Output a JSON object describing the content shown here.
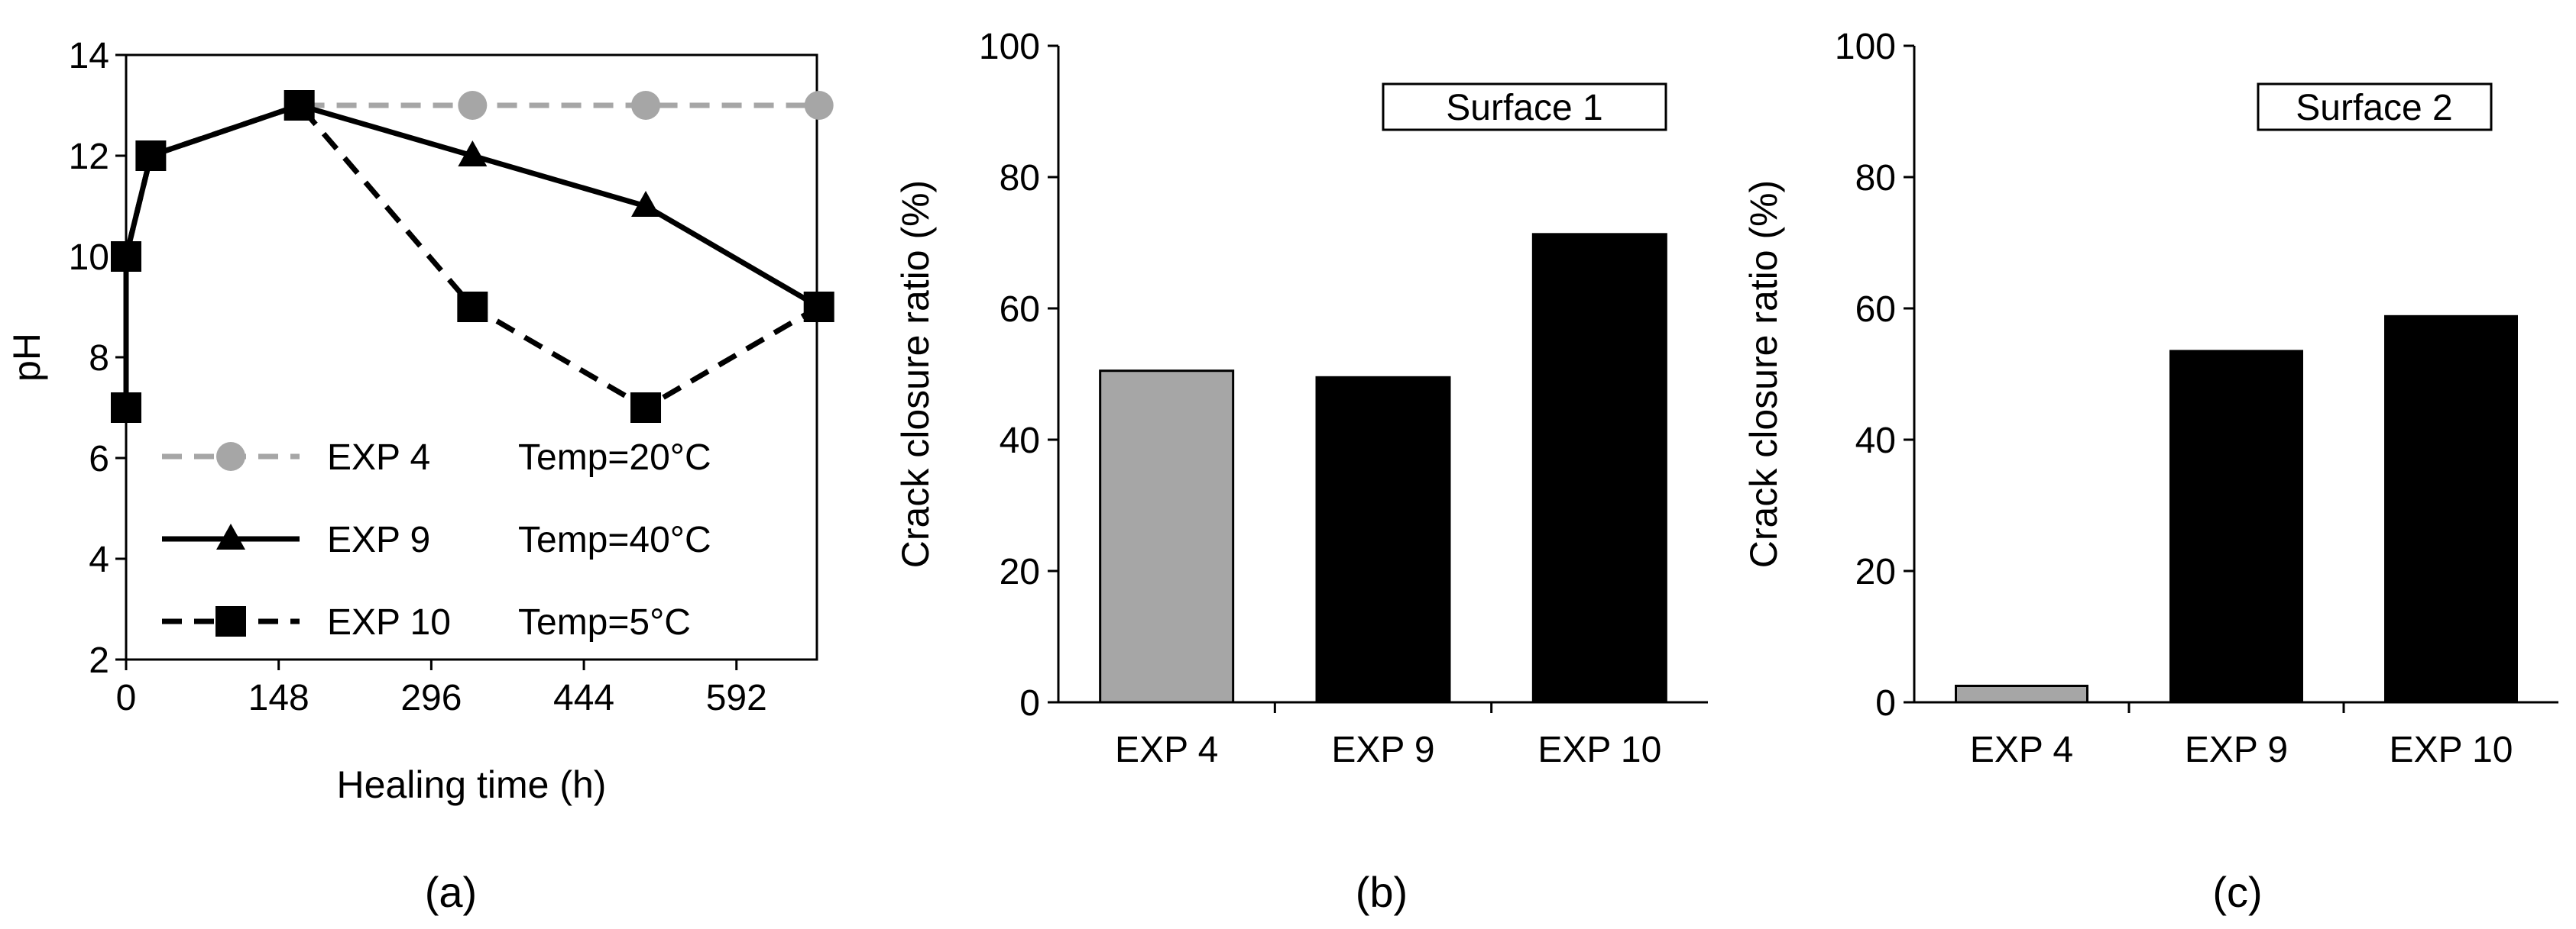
{
  "chart_data": [
    {
      "type": "line",
      "panel_label": "(a)",
      "xlabel": "Healing time (h)",
      "ylabel": "pH",
      "xlim": [
        0,
        670
      ],
      "ylim": [
        2,
        14
      ],
      "xticks": [
        0,
        148,
        296,
        444,
        592
      ],
      "yticks": [
        2,
        4,
        6,
        8,
        10,
        12,
        14
      ],
      "grid": false,
      "legend_position": "bottom-left",
      "series": [
        {
          "name": "EXP 4",
          "condition": "Temp=20°C",
          "color": "#a6a6a6",
          "style": "dashed",
          "marker": "circle",
          "points": [
            [
              0,
              7
            ],
            [
              0,
              10
            ],
            [
              24,
              12
            ],
            [
              168,
              13
            ],
            [
              336,
              13
            ],
            [
              504,
              13
            ],
            [
              672,
              13
            ]
          ]
        },
        {
          "name": "EXP 9",
          "condition": "Temp=40°C",
          "color": "#000000",
          "style": "solid",
          "marker": "triangle",
          "points": [
            [
              0,
              7
            ],
            [
              0,
              10
            ],
            [
              24,
              12
            ],
            [
              168,
              13
            ],
            [
              336,
              12
            ],
            [
              504,
              11
            ],
            [
              672,
              9
            ]
          ]
        },
        {
          "name": "EXP 10",
          "condition": "Temp=5°C",
          "color": "#000000",
          "style": "dashed",
          "marker": "square",
          "points": [
            [
              0,
              7
            ],
            [
              0,
              10
            ],
            [
              24,
              12
            ],
            [
              168,
              13
            ],
            [
              336,
              9
            ],
            [
              504,
              7
            ],
            [
              672,
              9
            ]
          ]
        }
      ]
    },
    {
      "type": "bar",
      "panel_label": "(b)",
      "title": "Surface 1",
      "ylabel": "Crack closure ratio (%)",
      "xlabel": "",
      "ylim": [
        0,
        100
      ],
      "yticks": [
        0,
        20,
        40,
        60,
        80,
        100
      ],
      "categories": [
        "EXP 4",
        "EXP 9",
        "EXP 10"
      ],
      "values": [
        50.5,
        49.5,
        71.3
      ],
      "colors": [
        "#a6a6a6",
        "#000000",
        "#000000"
      ]
    },
    {
      "type": "bar",
      "panel_label": "(c)",
      "title": "Surface 2",
      "ylabel": "Crack closure ratio (%)",
      "xlabel": "",
      "ylim": [
        0,
        100
      ],
      "yticks": [
        0,
        20,
        40,
        60,
        80,
        100
      ],
      "categories": [
        "EXP 4",
        "EXP 9",
        "EXP 10"
      ],
      "values": [
        2.5,
        53.5,
        58.8
      ],
      "colors": [
        "#a6a6a6",
        "#000000",
        "#000000"
      ]
    }
  ]
}
